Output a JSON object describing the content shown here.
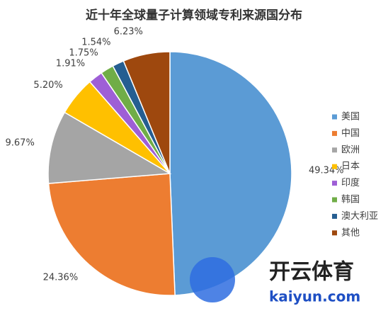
{
  "chart_data": {
    "type": "pie",
    "title": "近十年全球量子计算领域专利来源国分布",
    "categories": [
      "美国",
      "中国",
      "欧洲",
      "日本",
      "印度",
      "韩国",
      "澳大利亚",
      "其他"
    ],
    "values": [
      49.34,
      24.36,
      9.67,
      5.2,
      1.91,
      1.75,
      1.54,
      6.23
    ],
    "value_labels": [
      "49.34%",
      "24.36%",
      "9.67%",
      "5.20%",
      "1.91%",
      "1.75%",
      "1.54%",
      "6.23%"
    ],
    "colors": [
      "#5b9bd5",
      "#ed7d31",
      "#a5a5a5",
      "#ffc000",
      "#9e5fd6",
      "#70ad47",
      "#255e91",
      "#9e480e"
    ],
    "legend": "right"
  },
  "watermark": {
    "brand": "开云体育",
    "site": "kaiyun.com"
  }
}
